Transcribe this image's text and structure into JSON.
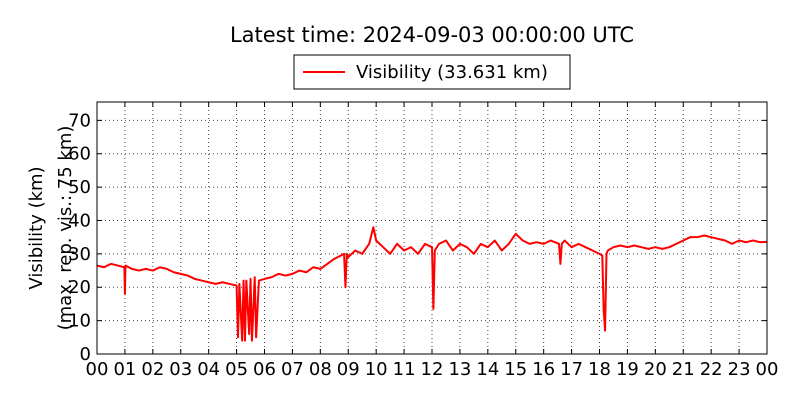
{
  "chart_data": {
    "type": "line",
    "title": "Latest time: 2024-09-03 00:00:00 UTC",
    "ylabel": [
      "Visibility (km)",
      "(max. rep. vis.: 75 km)"
    ],
    "legend": "top",
    "grid": true,
    "xlim": [
      0,
      24
    ],
    "ylim": [
      0,
      75.5
    ],
    "xticks": [
      {
        "value": 0,
        "label": "00"
      },
      {
        "value": 1,
        "label": "01"
      },
      {
        "value": 2,
        "label": "02"
      },
      {
        "value": 3,
        "label": "03"
      },
      {
        "value": 4,
        "label": "04"
      },
      {
        "value": 5,
        "label": "05"
      },
      {
        "value": 6,
        "label": "06"
      },
      {
        "value": 7,
        "label": "07"
      },
      {
        "value": 8,
        "label": "08"
      },
      {
        "value": 9,
        "label": "09"
      },
      {
        "value": 10,
        "label": "10"
      },
      {
        "value": 11,
        "label": "11"
      },
      {
        "value": 12,
        "label": "12"
      },
      {
        "value": 13,
        "label": "13"
      },
      {
        "value": 14,
        "label": "14"
      },
      {
        "value": 15,
        "label": "15"
      },
      {
        "value": 16,
        "label": "16"
      },
      {
        "value": 17,
        "label": "17"
      },
      {
        "value": 18,
        "label": "18"
      },
      {
        "value": 19,
        "label": "19"
      },
      {
        "value": 20,
        "label": "20"
      },
      {
        "value": 21,
        "label": "21"
      },
      {
        "value": 22,
        "label": "22"
      },
      {
        "value": 23,
        "label": "23"
      },
      {
        "value": 24,
        "label": "00"
      }
    ],
    "yticks": [
      0,
      10,
      20,
      30,
      40,
      50,
      60,
      70
    ],
    "x": [
      0,
      0.25,
      0.5,
      0.75,
      0.98,
      1.0,
      1.02,
      1.25,
      1.5,
      1.75,
      2,
      2.25,
      2.5,
      2.75,
      3,
      3.25,
      3.5,
      3.75,
      4,
      4.25,
      4.5,
      4.75,
      5.0,
      5.05,
      5.1,
      5.2,
      5.25,
      5.3,
      5.35,
      5.45,
      5.5,
      5.55,
      5.65,
      5.7,
      5.8,
      6,
      6.25,
      6.5,
      6.75,
      7,
      7.25,
      7.5,
      7.75,
      8,
      8.25,
      8.5,
      8.85,
      8.9,
      8.95,
      9,
      9.25,
      9.5,
      9.75,
      9.9,
      10,
      10.25,
      10.5,
      10.75,
      11,
      11.25,
      11.5,
      11.75,
      12.0,
      12.05,
      12.1,
      12.25,
      12.5,
      12.75,
      13,
      13.25,
      13.5,
      13.75,
      14,
      14.25,
      14.5,
      14.75,
      15,
      15.25,
      15.5,
      15.75,
      16,
      16.25,
      16.55,
      16.6,
      16.65,
      16.75,
      17,
      17.25,
      17.5,
      17.75,
      18,
      18.1,
      18.15,
      18.2,
      18.25,
      18.3,
      18.5,
      18.75,
      19,
      19.25,
      19.5,
      19.75,
      20,
      20.25,
      20.5,
      20.75,
      21,
      21.25,
      21.5,
      21.75,
      22,
      22.25,
      22.5,
      22.75,
      23,
      23.25,
      23.5,
      23.75,
      24
    ],
    "series": [
      {
        "name": "Visibility (33.631 km)",
        "color": "#ff0000",
        "values": [
          26.5,
          26,
          27,
          26.5,
          26,
          18,
          26.5,
          25.5,
          25,
          25.5,
          25,
          26,
          25.5,
          24.5,
          24,
          23.5,
          22.5,
          22,
          21.5,
          21,
          21.5,
          21,
          20.5,
          5,
          21,
          4,
          22,
          4,
          22,
          6,
          22.5,
          4,
          23,
          5,
          22,
          22.5,
          23,
          24,
          23.5,
          24,
          25,
          24.5,
          26,
          25.5,
          27,
          28.5,
          30,
          20,
          30,
          29,
          31,
          30,
          33,
          38,
          34,
          32,
          30,
          33,
          31,
          32,
          30,
          33,
          32,
          13.5,
          31,
          33,
          34,
          31,
          33,
          32,
          30,
          33,
          32,
          34,
          31,
          33,
          36,
          34,
          33,
          33.5,
          33,
          34,
          33,
          27,
          33,
          34,
          32,
          33,
          32,
          31,
          30,
          29.5,
          13,
          7,
          30,
          31,
          32,
          32.5,
          32,
          32.5,
          32,
          31.5,
          32,
          31.5,
          32,
          33,
          34,
          35,
          35,
          35.5,
          35,
          34.5,
          34,
          33,
          34,
          33.5,
          34,
          33.5,
          33.6
        ]
      }
    ]
  }
}
